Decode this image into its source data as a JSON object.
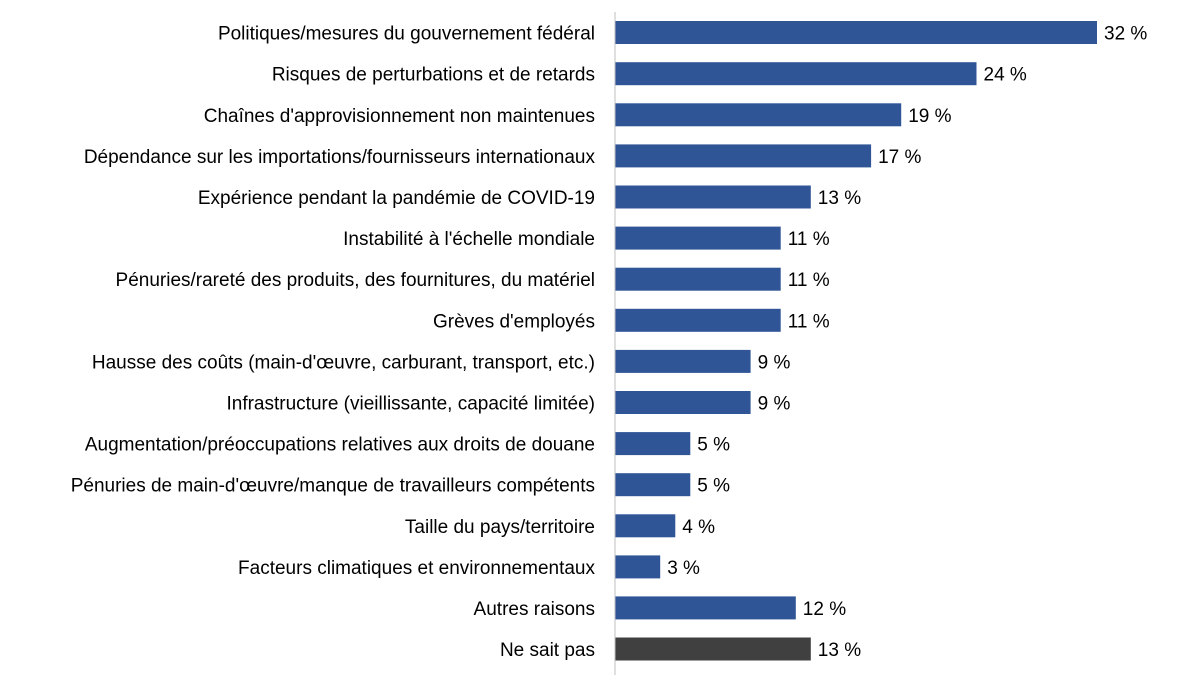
{
  "chart_data": {
    "type": "bar",
    "orientation": "horizontal",
    "title": "",
    "xlabel": "",
    "ylabel": "",
    "xlim": [
      0,
      32
    ],
    "grid": false,
    "categories": [
      "Politiques/mesures du gouvernement fédéral",
      "Risques de perturbations et de retards",
      "Chaînes d'approvisionnement non maintenues",
      "Dépendance sur les importations/fournisseurs internationaux",
      "Expérience pendant la pandémie de COVID-19",
      "Instabilité à l'échelle mondiale",
      "Pénuries/rareté des produits, des fournitures, du matériel",
      "Grèves d'employés",
      "Hausse des coûts (main-d'œuvre, carburant, transport, etc.)",
      "Infrastructure (vieillissante, capacité limitée)",
      "Augmentation/préoccupations relatives aux droits de douane",
      "Pénuries de main-d'œuvre/manque de travailleurs compétents",
      "Taille du pays/territoire",
      "Facteurs climatiques et environnementaux",
      "Autres raisons",
      "Ne sait pas"
    ],
    "values": [
      32,
      24,
      19,
      17,
      13,
      11,
      11,
      11,
      9,
      9,
      5,
      5,
      4,
      3,
      12,
      13
    ],
    "value_labels": [
      "32 %",
      "24 %",
      "19 %",
      "17 %",
      "13 %",
      "11 %",
      "11 %",
      "11 %",
      "9 %",
      "9 %",
      "5 %",
      "5 %",
      "4 %",
      "3 %",
      "12 %",
      "13 %"
    ],
    "bar_colors": [
      "#2f5597",
      "#2f5597",
      "#2f5597",
      "#2f5597",
      "#2f5597",
      "#2f5597",
      "#2f5597",
      "#2f5597",
      "#2f5597",
      "#2f5597",
      "#2f5597",
      "#2f5597",
      "#2f5597",
      "#2f5597",
      "#2f5597",
      "#404040"
    ],
    "axis_color": "#bfbfbf"
  }
}
